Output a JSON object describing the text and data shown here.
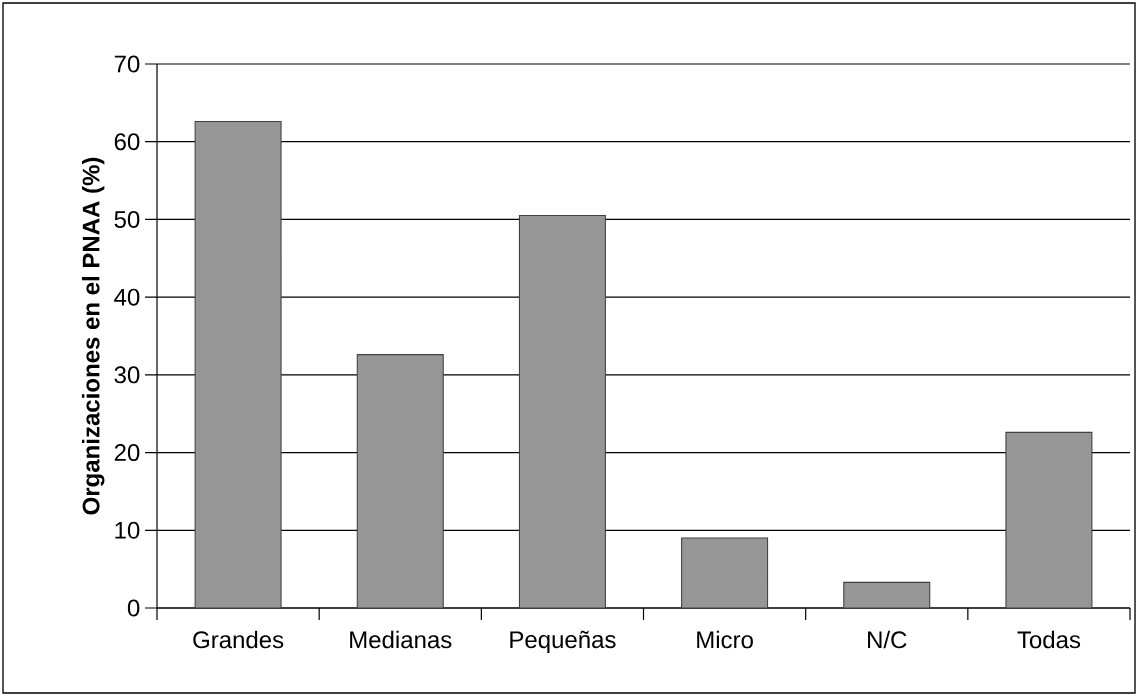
{
  "chart_data": {
    "type": "bar",
    "ylabel": "Organizaciones en el PNAA (%)",
    "categories": [
      "Grandes",
      "Medianas",
      "Pequeñas",
      "Micro",
      "N/C",
      "Todas"
    ],
    "values": [
      62.6,
      32.6,
      50.5,
      9.0,
      3.3,
      22.6
    ],
    "color": "#969696",
    "ylim": [
      0,
      70
    ],
    "yticks": [
      0,
      10,
      20,
      30,
      40,
      50,
      60,
      70
    ],
    "grid": "y"
  }
}
